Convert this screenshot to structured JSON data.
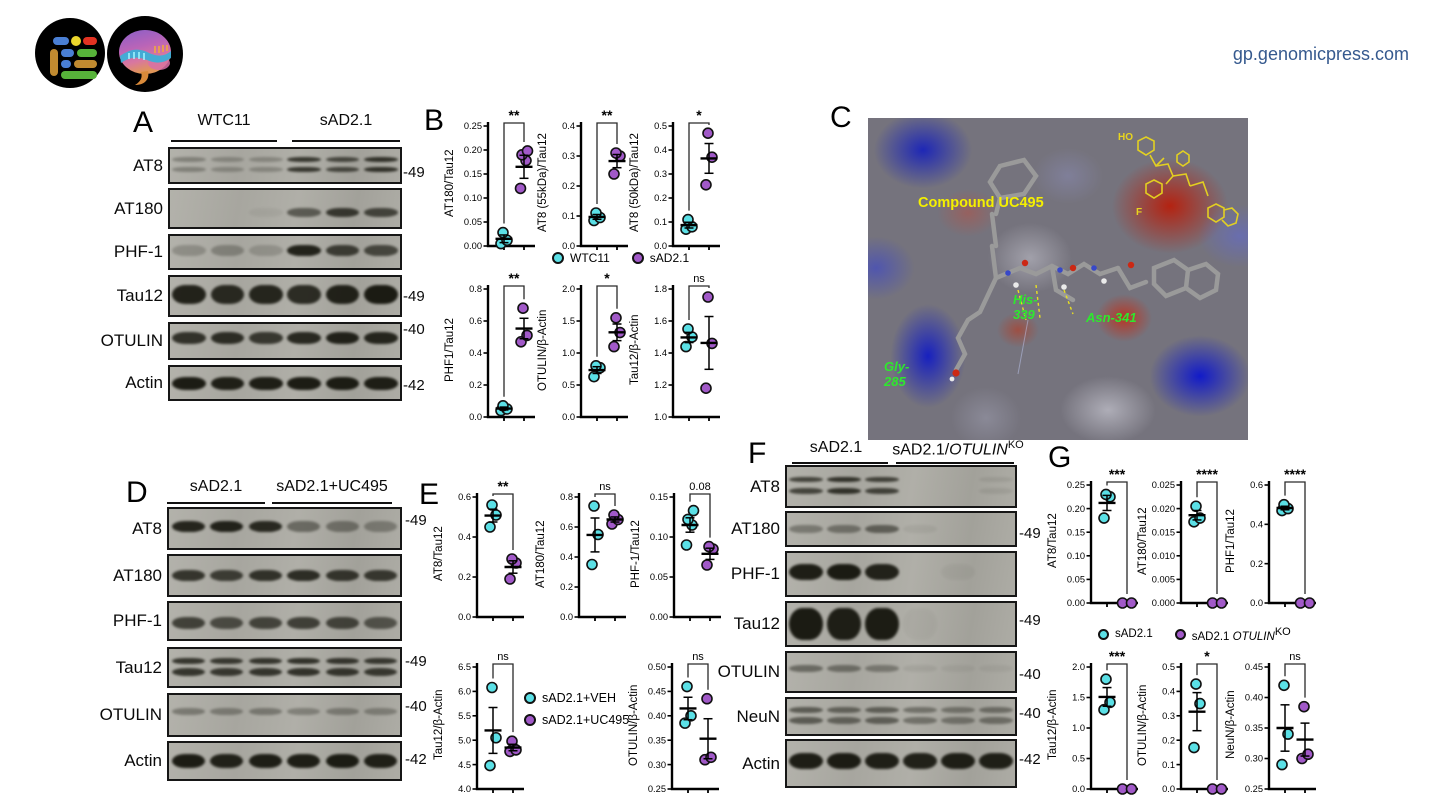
{
  "site": {
    "url": "gp.genomicpress.com"
  },
  "colors": {
    "group1": "#5BE0E6",
    "group2": "#A159C8",
    "url_text": "#35598E",
    "sig_green": "#2EE82E",
    "compound_yellow": "#F5F000"
  },
  "panelA": {
    "letter": "A",
    "groups": [
      {
        "label": "WTC11"
      },
      {
        "label": "sAD2.1"
      }
    ],
    "rows": [
      {
        "label": "AT8",
        "mw": "-49",
        "mw_at": 0.68,
        "bands": [
          0.3,
          0.25,
          0.25,
          0.78,
          0.68,
          0.82
        ],
        "double": true,
        "bh": 10,
        "pos": 0.5
      },
      {
        "label": "AT180",
        "mw": "",
        "mw_at": 0.5,
        "bands": [
          0,
          0,
          0.05,
          0.55,
          0.78,
          0.7
        ],
        "double": false,
        "bh": 9,
        "pos": 0.62
      },
      {
        "label": "PHF-1",
        "mw": "",
        "mw_at": 0.5,
        "bands": [
          0.22,
          0.28,
          0.18,
          0.92,
          0.75,
          0.68
        ],
        "double": false,
        "bh": 11,
        "pos": 0.45
      },
      {
        "label": "Tau12",
        "mw": "-49",
        "mw_at": 0.5,
        "bands": [
          0.92,
          0.88,
          0.9,
          0.86,
          0.93,
          0.97
        ],
        "double": false,
        "bh": 19,
        "pos": 0.45
      },
      {
        "label": "OTULIN",
        "mw": "-40",
        "mw_at": 0.18,
        "bands": [
          0.82,
          0.85,
          0.78,
          0.88,
          0.93,
          0.9
        ],
        "double": false,
        "bh": 12,
        "pos": 0.4
      },
      {
        "label": "Actin",
        "mw": "-42",
        "mw_at": 0.55,
        "bands": [
          0.96,
          0.94,
          0.95,
          0.96,
          0.96,
          0.95
        ],
        "double": false,
        "bh": 13,
        "pos": 0.5
      }
    ]
  },
  "panelB": {
    "letter": "B",
    "legend": [
      {
        "label": "WTC11"
      },
      {
        "label": "sAD2.1"
      }
    ],
    "plots_top": [
      {
        "ylabel": "AT180/Tau12",
        "ylim": [
          0,
          0.25
        ],
        "yticks": [
          "0.00",
          "0.05",
          "0.10",
          "0.15",
          "0.20",
          "0.25"
        ],
        "sig": "**",
        "g1": [
          0.005,
          0.012,
          0.028
        ],
        "m1": 0.015,
        "s1": 0.008,
        "g2": [
          0.12,
          0.178,
          0.19,
          0.198
        ],
        "m2": 0.165,
        "s2": 0.024
      },
      {
        "ylabel": "AT8 (55kDa)/Tau12",
        "ylim": [
          0,
          0.4
        ],
        "yticks": [
          "0.0",
          "0.1",
          "0.2",
          "0.3",
          "0.4"
        ],
        "sig": "**",
        "g1": [
          0.085,
          0.095,
          0.11
        ],
        "m1": 0.097,
        "s1": 0.008,
        "g2": [
          0.24,
          0.3,
          0.31
        ],
        "m2": 0.283,
        "s2": 0.022
      },
      {
        "ylabel": "AT8 (50kDa)/Tau12",
        "ylim": [
          0,
          0.5
        ],
        "yticks": [
          "0.0",
          "0.1",
          "0.2",
          "0.3",
          "0.4",
          "0.5"
        ],
        "sig": "*",
        "g1": [
          0.07,
          0.08,
          0.11
        ],
        "m1": 0.087,
        "s1": 0.012,
        "g2": [
          0.255,
          0.37,
          0.47
        ],
        "m2": 0.365,
        "s2": 0.062
      }
    ],
    "plots_bottom": [
      {
        "ylabel": "PHF1/Tau12",
        "ylim": [
          0,
          0.8
        ],
        "yticks": [
          "0.0",
          "0.2",
          "0.4",
          "0.6",
          "0.8"
        ],
        "sig": "**",
        "g1": [
          0.04,
          0.05,
          0.07
        ],
        "m1": 0.053,
        "s1": 0.009,
        "g2": [
          0.47,
          0.51,
          0.68
        ],
        "m2": 0.553,
        "s2": 0.064
      },
      {
        "ylabel": "OTULIN/β-Actin",
        "ylim": [
          0,
          2
        ],
        "yticks": [
          "0.0",
          "0.5",
          "1.0",
          "1.5",
          "2.0"
        ],
        "sig": "*",
        "g1": [
          0.63,
          0.77,
          0.8
        ],
        "m1": 0.733,
        "s1": 0.053,
        "g2": [
          1.1,
          1.32,
          1.55
        ],
        "m2": 1.323,
        "s2": 0.13
      },
      {
        "ylabel": "Tau12/β-Actin",
        "ylim": [
          1,
          1.8
        ],
        "yticks": [
          "1.0",
          "1.2",
          "1.4",
          "1.6",
          "1.8"
        ],
        "sig": "ns",
        "g1": [
          1.44,
          1.5,
          1.55
        ],
        "m1": 1.497,
        "s1": 0.032,
        "g2": [
          1.18,
          1.46,
          1.75
        ],
        "m2": 1.463,
        "s2": 0.165
      }
    ]
  },
  "panelC": {
    "letter": "C",
    "labels": {
      "compound": "Compound UC495",
      "his1": "His-",
      "his2": "339",
      "asn": "Asn-341",
      "gly1": "Gly-",
      "gly2": "285",
      "ho": "HO",
      "f": "F"
    }
  },
  "panelD": {
    "letter": "D",
    "groups": [
      {
        "label": "sAD2.1"
      },
      {
        "label": "sAD2.1+UC495"
      }
    ],
    "rows": [
      {
        "label": "AT8",
        "mw": "-49",
        "mw_at": 0.3,
        "bands": [
          0.9,
          0.92,
          0.88,
          0.45,
          0.4,
          0.33
        ],
        "double": false,
        "bh": 11,
        "pos": 0.45
      },
      {
        "label": "AT180",
        "mw": "",
        "mw_at": 0.5,
        "bands": [
          0.8,
          0.75,
          0.82,
          0.85,
          0.8,
          0.78
        ],
        "double": false,
        "bh": 11,
        "pos": 0.5
      },
      {
        "label": "PHF-1",
        "mw": "",
        "mw_at": 0.5,
        "bands": [
          0.72,
          0.65,
          0.7,
          0.73,
          0.7,
          0.6
        ],
        "double": false,
        "bh": 12,
        "pos": 0.55
      },
      {
        "label": "Tau12",
        "mw": "-49",
        "mw_at": 0.35,
        "bands": [
          0.8,
          0.78,
          0.8,
          0.82,
          0.8,
          0.78
        ],
        "double": true,
        "bh": 13,
        "pos": 0.5
      },
      {
        "label": "OTULIN",
        "mw": "-40",
        "mw_at": 0.3,
        "bands": [
          0.35,
          0.33,
          0.35,
          0.3,
          0.32,
          0.3
        ],
        "double": false,
        "bh": 7,
        "pos": 0.4
      },
      {
        "label": "Actin",
        "mw": "-42",
        "mw_at": 0.45,
        "bands": [
          0.96,
          0.93,
          0.95,
          0.95,
          0.96,
          0.94
        ],
        "double": false,
        "bh": 14,
        "pos": 0.5
      }
    ]
  },
  "panelE": {
    "letter": "E",
    "legend": [
      {
        "label": "sAD2.1+VEH"
      },
      {
        "label": "sAD2.1+UC495"
      }
    ],
    "plots_top": [
      {
        "ylabel": "AT8/Tau12",
        "ylim": [
          0,
          0.6
        ],
        "yticks": [
          "0.0",
          "0.2",
          "0.4",
          "0.6"
        ],
        "sig": "**",
        "g1": [
          0.45,
          0.51,
          0.56
        ],
        "m1": 0.507,
        "s1": 0.032,
        "g2": [
          0.19,
          0.27,
          0.29
        ],
        "m2": 0.25,
        "s2": 0.031
      },
      {
        "ylabel": "AT180/Tau12",
        "ylim": [
          0,
          0.8
        ],
        "yticks": [
          "0.0",
          "0.2",
          "0.4",
          "0.6",
          "0.8"
        ],
        "sig": "ns",
        "g1": [
          0.35,
          0.55,
          0.74
        ],
        "m1": 0.547,
        "s1": 0.113,
        "g2": [
          0.62,
          0.65,
          0.68
        ],
        "m2": 0.65,
        "s2": 0.017
      },
      {
        "ylabel": "PHF-1/Tau12",
        "ylim": [
          0,
          0.15
        ],
        "yticks": [
          "0.00",
          "0.05",
          "0.10",
          "0.15"
        ],
        "sig": "0.08",
        "g1": [
          0.09,
          0.115,
          0.122,
          0.133
        ],
        "m1": 0.115,
        "s1": 0.009,
        "g2": [
          0.065,
          0.085,
          0.088
        ],
        "m2": 0.079,
        "s2": 0.007
      }
    ],
    "plots_bottom": [
      {
        "ylabel": "Tau12/β-Actin",
        "ylim": [
          4,
          6.5
        ],
        "yticks": [
          "4.0",
          "4.5",
          "5.0",
          "5.5",
          "6.0",
          "6.5"
        ],
        "sig": "ns",
        "g1": [
          4.48,
          5.05,
          6.08
        ],
        "m1": 5.2,
        "s1": 0.47,
        "g2": [
          4.77,
          4.8,
          4.98
        ],
        "m2": 4.85,
        "s2": 0.066
      },
      {
        "ylabel": "OTULIN/β-Actin",
        "ylim": [
          0.25,
          0.5
        ],
        "yticks": [
          "0.25",
          "0.30",
          "0.35",
          "0.40",
          "0.45",
          "0.50"
        ],
        "sig": "ns",
        "g1": [
          0.385,
          0.4,
          0.46
        ],
        "m1": 0.415,
        "s1": 0.023,
        "g2": [
          0.31,
          0.315,
          0.435
        ],
        "m2": 0.353,
        "s2": 0.041
      }
    ]
  },
  "panelF": {
    "letter": "F",
    "groups": [
      {
        "label": "sAD2.1"
      },
      {
        "prefix": "sAD2.1/",
        "italic": "OTULIN",
        "sup": "KO"
      }
    ],
    "rows": [
      {
        "label": "AT8",
        "mw": "",
        "mw_at": 0.5,
        "bands": [
          0.7,
          0.82,
          0.72,
          0,
          0,
          0.08
        ],
        "double": true,
        "bh": 11,
        "pos": 0.5
      },
      {
        "label": "AT180",
        "mw": "-49",
        "mw_at": 0.6,
        "bands": [
          0.35,
          0.4,
          0.52,
          0.06,
          0,
          0
        ],
        "double": false,
        "bh": 8,
        "pos": 0.5
      },
      {
        "label": "PHF-1",
        "mw": "",
        "mw_at": 0.5,
        "bands": [
          0.95,
          0.97,
          0.92,
          0,
          0.04,
          0
        ],
        "double": false,
        "bh": 16,
        "pos": 0.45
      },
      {
        "label": "Tau12",
        "mw": "-49",
        "mw_at": 0.42,
        "bands": [
          0.97,
          0.95,
          0.96,
          0.03,
          0,
          0
        ],
        "double": false,
        "bh": 32,
        "pos": 0.5
      },
      {
        "label": "OTULIN",
        "mw": "-40",
        "mw_at": 0.55,
        "bands": [
          0.45,
          0.42,
          0.35,
          0.07,
          0.05,
          0.05
        ],
        "double": false,
        "bh": 7,
        "pos": 0.42
      },
      {
        "label": "NeuN",
        "mw": "-40",
        "mw_at": 0.4,
        "bands": [
          0.55,
          0.5,
          0.52,
          0.4,
          0.38,
          0.42
        ],
        "double": true,
        "bh": 12,
        "pos": 0.45
      },
      {
        "label": "Actin",
        "mw": "-42",
        "mw_at": 0.4,
        "bands": [
          0.95,
          0.96,
          0.94,
          0.93,
          0.95,
          0.94
        ],
        "double": false,
        "bh": 16,
        "pos": 0.45
      }
    ]
  },
  "panelG": {
    "letter": "G",
    "legend": [
      {
        "label": "sAD2.1"
      },
      {
        "prefix": "sAD2.1 ",
        "italic": "OTULIN",
        "sup": "KO"
      }
    ],
    "plots_top": [
      {
        "ylabel": "AT8/Tau12",
        "ylim": [
          0,
          0.25
        ],
        "yticks": [
          "0.00",
          "0.05",
          "0.10",
          "0.15",
          "0.20",
          "0.25"
        ],
        "sig": "***",
        "g1": [
          0.18,
          0.225,
          0.23
        ],
        "m1": 0.212,
        "s1": 0.016,
        "g2": [
          0,
          0
        ],
        "m2": 0,
        "s2": 0
      },
      {
        "ylabel": "AT180/Tau12",
        "ylim": [
          0,
          0.025
        ],
        "yticks": [
          "0.000",
          "0.005",
          "0.010",
          "0.015",
          "0.020",
          "0.025"
        ],
        "sig": "****",
        "g1": [
          0.0172,
          0.018,
          0.0205
        ],
        "m1": 0.0186,
        "s1": 0.001,
        "g2": [
          0,
          0
        ],
        "m2": 0,
        "s2": 0
      },
      {
        "ylabel": "PHF1/Tau12",
        "ylim": [
          0,
          0.6
        ],
        "yticks": [
          "0.0",
          "0.2",
          "0.4",
          "0.6"
        ],
        "sig": "****",
        "g1": [
          0.47,
          0.48,
          0.5
        ],
        "m1": 0.483,
        "s1": 0.009,
        "g2": [
          0,
          0
        ],
        "m2": 0,
        "s2": 0
      }
    ],
    "plots_bottom": [
      {
        "ylabel": "Tau12/β-Actin",
        "ylim": [
          0,
          2
        ],
        "yticks": [
          "0.0",
          "0.5",
          "1.0",
          "1.5",
          "2.0"
        ],
        "sig": "***",
        "g1": [
          1.3,
          1.42,
          1.8
        ],
        "m1": 1.51,
        "s1": 0.153,
        "g2": [
          0,
          0
        ],
        "m2": 0,
        "s2": 0
      },
      {
        "ylabel": "OTULIN/β-Actin",
        "ylim": [
          0,
          0.5
        ],
        "yticks": [
          "0.0",
          "0.1",
          "0.2",
          "0.3",
          "0.4",
          "0.5"
        ],
        "sig": "*",
        "g1": [
          0.17,
          0.35,
          0.43
        ],
        "m1": 0.317,
        "s1": 0.078,
        "g2": [
          0,
          0
        ],
        "m2": 0,
        "s2": 0
      },
      {
        "ylabel": "NeuN/β-Actin",
        "ylim": [
          0.25,
          0.45
        ],
        "yticks": [
          "0.25",
          "0.30",
          "0.35",
          "0.40",
          "0.45"
        ],
        "sig": "ns",
        "g1": [
          0.29,
          0.34,
          0.42
        ],
        "m1": 0.35,
        "s1": 0.038,
        "g2": [
          0.3,
          0.307,
          0.385
        ],
        "m2": 0.331,
        "s2": 0.027
      }
    ]
  }
}
